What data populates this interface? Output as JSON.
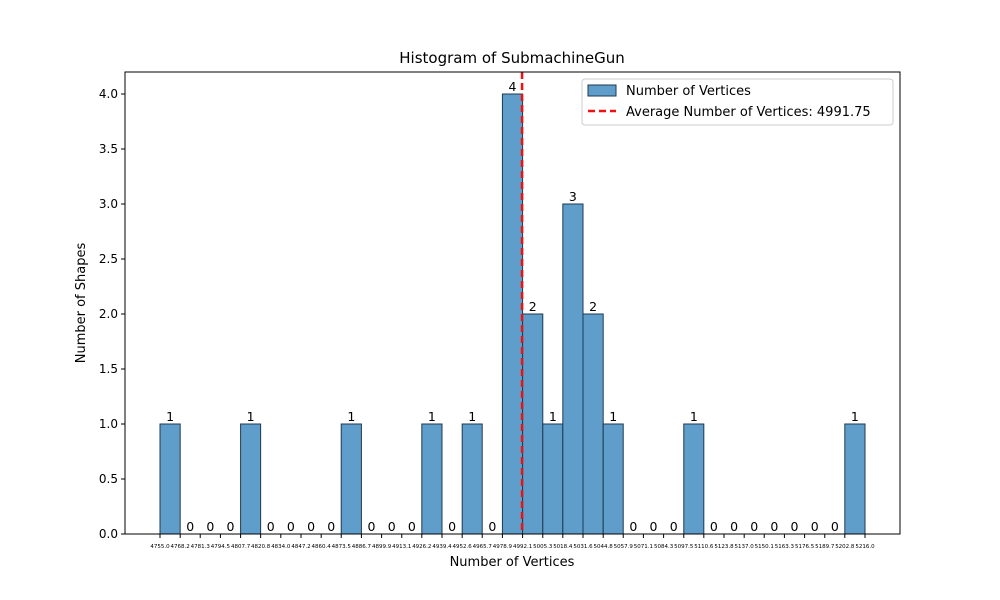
{
  "chart_data": {
    "type": "bar",
    "title": "Histogram of SubmachineGun",
    "xlabel": "Number of Vertices",
    "ylabel": "Number of Shapes",
    "ylim": [
      0,
      4.2
    ],
    "y_ticks": [
      "0.0",
      "0.5",
      "1.0",
      "1.5",
      "2.0",
      "2.5",
      "3.0",
      "3.5",
      "4.0"
    ],
    "bin_edges": [
      "4755.0",
      "4768.2",
      "4781.3",
      "4794.5",
      "4807.7",
      "4820.8",
      "4834.0",
      "4847.2",
      "4860.4",
      "4873.5",
      "4886.7",
      "4899.9",
      "4913.1",
      "4926.2",
      "4939.4",
      "4952.6",
      "4965.7",
      "4978.9",
      "4992.1",
      "5005.3",
      "5018.4",
      "5031.6",
      "5044.8",
      "5057.9",
      "5071.1",
      "5084.3",
      "5097.5",
      "5110.6",
      "5123.8",
      "5137.0",
      "5150.1",
      "5163.3",
      "5176.5",
      "5189.7",
      "5202.8",
      "5216.0"
    ],
    "counts": [
      1,
      0,
      0,
      0,
      1,
      0,
      0,
      0,
      0,
      1,
      0,
      0,
      0,
      1,
      0,
      1,
      0,
      4,
      2,
      1,
      3,
      2,
      1,
      0,
      0,
      0,
      1,
      0,
      0,
      0,
      0,
      0,
      0,
      0,
      1
    ],
    "count_labels": [
      "1",
      "0",
      "0",
      "0",
      "1",
      "0",
      "0",
      "0",
      "0",
      "1",
      "0",
      "0",
      "0",
      "1",
      "0",
      "1",
      "0",
      "4",
      "2",
      "1",
      "3",
      "2",
      "1",
      "0",
      "0",
      "0",
      "1",
      "0",
      "0",
      "0",
      "0",
      "0",
      "0",
      "0",
      "1"
    ],
    "average": 4991.75,
    "bar_color": "#5f9ecb",
    "bar_edge_color": "#1f3a4f",
    "avg_line_color": "#ee1111",
    "grid": false,
    "legend": {
      "placement": "top-right",
      "entries": [
        {
          "label": "Number of Vertices",
          "kind": "bar"
        },
        {
          "label": "Average Number of Vertices: 4991.75",
          "kind": "dashed-line"
        }
      ]
    }
  }
}
